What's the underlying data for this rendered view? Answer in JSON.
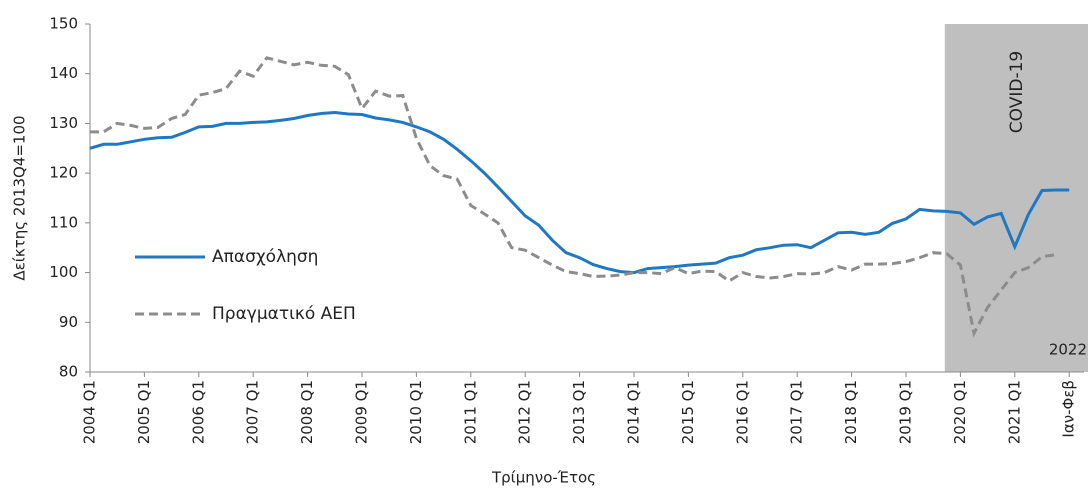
{
  "chart_data": {
    "type": "line",
    "y_label": "Δείκτης 2013Q4=100",
    "x_label": "Τρίμηνο-Έτος",
    "categories": [
      "2004 Q1",
      null,
      null,
      null,
      "2005 Q1",
      null,
      null,
      null,
      "2006 Q1",
      null,
      null,
      null,
      "2007 Q1",
      null,
      null,
      null,
      "2008 Q1",
      null,
      null,
      null,
      "2009 Q1",
      null,
      null,
      null,
      "2010 Q1",
      null,
      null,
      null,
      "2011 Q1",
      null,
      null,
      null,
      "2012 Q1",
      null,
      null,
      null,
      "2013 Q1",
      null,
      null,
      null,
      "2014 Q1",
      null,
      null,
      null,
      "2015 Q1",
      null,
      null,
      null,
      "2016 Q1",
      null,
      null,
      null,
      "2017 Q1",
      null,
      null,
      null,
      "2018 Q1",
      null,
      null,
      null,
      "2019 Q1",
      null,
      null,
      null,
      "2020 Q1",
      null,
      null,
      null,
      "2021 Q1",
      null,
      null,
      null,
      "Ιαν-Φεβ"
    ],
    "series": [
      {
        "name": "Απασχόληση",
        "color": "#1f78c1",
        "dash": false,
        "values": [
          125,
          125.8,
          125.8,
          126.3,
          126.8,
          127.1,
          127.2,
          128.2,
          129.3,
          129.4,
          130,
          130,
          130.2,
          130.3,
          130.6,
          131,
          131.6,
          132,
          132.2,
          131.9,
          131.8,
          131.1,
          130.7,
          130.2,
          129.3,
          128.3,
          126.8,
          124.8,
          122.5,
          120,
          117.2,
          114.3,
          111.4,
          109.5,
          106.5,
          104,
          103,
          101.6,
          100.8,
          100.2,
          100,
          100.8,
          101,
          101.2,
          101.5,
          101.7,
          101.9,
          103,
          103.5,
          104.6,
          105,
          105.5,
          105.6,
          105,
          106.5,
          108,
          108.1,
          107.7,
          108.1,
          109.9,
          110.8,
          112.7,
          112.4,
          112.3,
          112,
          109.7,
          111.2,
          111.9,
          105.2,
          111.7,
          116.5,
          116.6,
          116.6
        ]
      },
      {
        "name": "Πραγματικό ΑΕΠ",
        "color": "#8c8c8c",
        "dash": true,
        "values": [
          128.3,
          128.3,
          130,
          129.6,
          129,
          129.2,
          131,
          131.8,
          135.7,
          136.2,
          137,
          140.5,
          139.5,
          143.2,
          142.5,
          141.8,
          142.3,
          141.7,
          141.5,
          139.8,
          133,
          136.5,
          135.5,
          135.6,
          127,
          121.5,
          119.5,
          118.8,
          113.5,
          111.8,
          110,
          105,
          104.5,
          103,
          101.5,
          100.2,
          99.8,
          99.2,
          99.3,
          99.5,
          100,
          100,
          99.8,
          101,
          99.8,
          100.3,
          100.2,
          98.3,
          100,
          99.2,
          98.9,
          99.2,
          99.8,
          99.7,
          100,
          101.2,
          100.5,
          101.7,
          101.7,
          101.8,
          102.2,
          103,
          104,
          103.8,
          101.5,
          87.8,
          93,
          96.5,
          100,
          101,
          103.2,
          103.6,
          null
        ]
      }
    ],
    "ylim": [
      80,
      150
    ],
    "yticks": [
      80,
      90,
      100,
      110,
      120,
      130,
      140,
      150
    ],
    "grid": false,
    "shade": {
      "start_index": 63,
      "label": "COVID-19",
      "color": "#bfbfbf"
    },
    "annotation": "2022"
  }
}
